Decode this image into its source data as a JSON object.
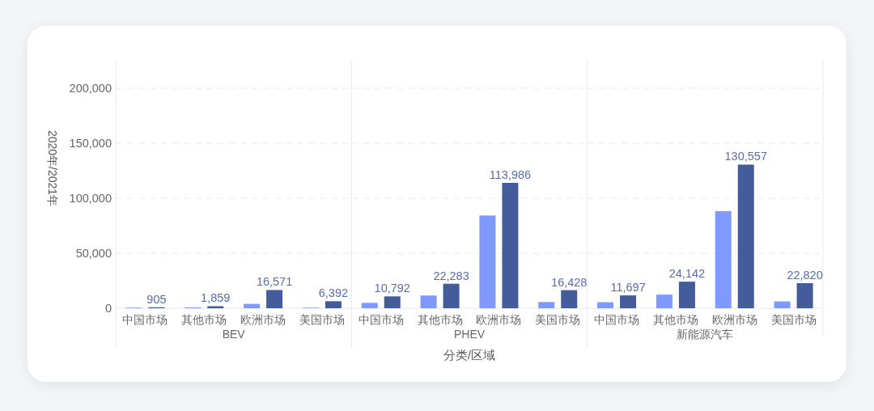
{
  "chart_data": [
    {
      "type": "bar",
      "xlabel": "BEV",
      "ylabel": "2020年/2021年",
      "categories": [
        "中国市场",
        "其他市场",
        "欧洲市场",
        "美国市场"
      ],
      "ylim": [
        0,
        225000
      ],
      "yticks": [
        0,
        {
          "value": 50000,
          "label": "50,000"
        },
        {
          "value": 100000,
          "label": "100,000"
        },
        {
          "value": 150000,
          "label": "150,000"
        },
        {
          "value": 200000,
          "label": "200,000"
        }
      ],
      "grid": "y",
      "series": [
        {
          "color": "#7f99ff",
          "values": [
            600,
            800,
            4000,
            500
          ]
        },
        {
          "color": "#445c9a",
          "values": [
            905,
            1859,
            16571,
            6392
          ],
          "value_labels": [
            "905",
            "1,859",
            "16,571",
            "6,392"
          ]
        }
      ]
    },
    {
      "type": "bar",
      "xlabel": "PHEV",
      "categories": [
        "中国市场",
        "其他市场",
        "欧洲市场",
        "美国市场"
      ],
      "ylim": [
        0,
        225000
      ],
      "yticks": [
        0,
        50000,
        100000,
        150000,
        200000
      ],
      "grid": "y",
      "tick_labels": "x",
      "annotations": [
        "分类/区域"
      ],
      "series": [
        {
          "color": "#7f99ff",
          "values": [
            4900,
            11600,
            84300,
            5700
          ]
        },
        {
          "color": "#445c9a",
          "values": [
            10792,
            22283,
            113986,
            16428
          ],
          "value_labels": [
            "10,792",
            "22,283",
            "113,986",
            "16,428"
          ]
        }
      ]
    },
    {
      "type": "bar",
      "xlabel": "新能源汽车",
      "categories": [
        "中国市场",
        "其他市场",
        "欧洲市场",
        "美国市场"
      ],
      "ylim": [
        0,
        225000
      ],
      "yticks": [
        0,
        50000,
        100000,
        150000,
        200000
      ],
      "grid": "y",
      "tick_labels": "x",
      "series": [
        {
          "color": "#7f99ff",
          "values": [
            5500,
            12400,
            88300,
            6200
          ]
        },
        {
          "color": "#445c9a",
          "values": [
            11697,
            24142,
            130557,
            22820
          ],
          "value_labels": [
            "11,697",
            "24,142",
            "130,557",
            "22,820"
          ]
        }
      ]
    }
  ]
}
